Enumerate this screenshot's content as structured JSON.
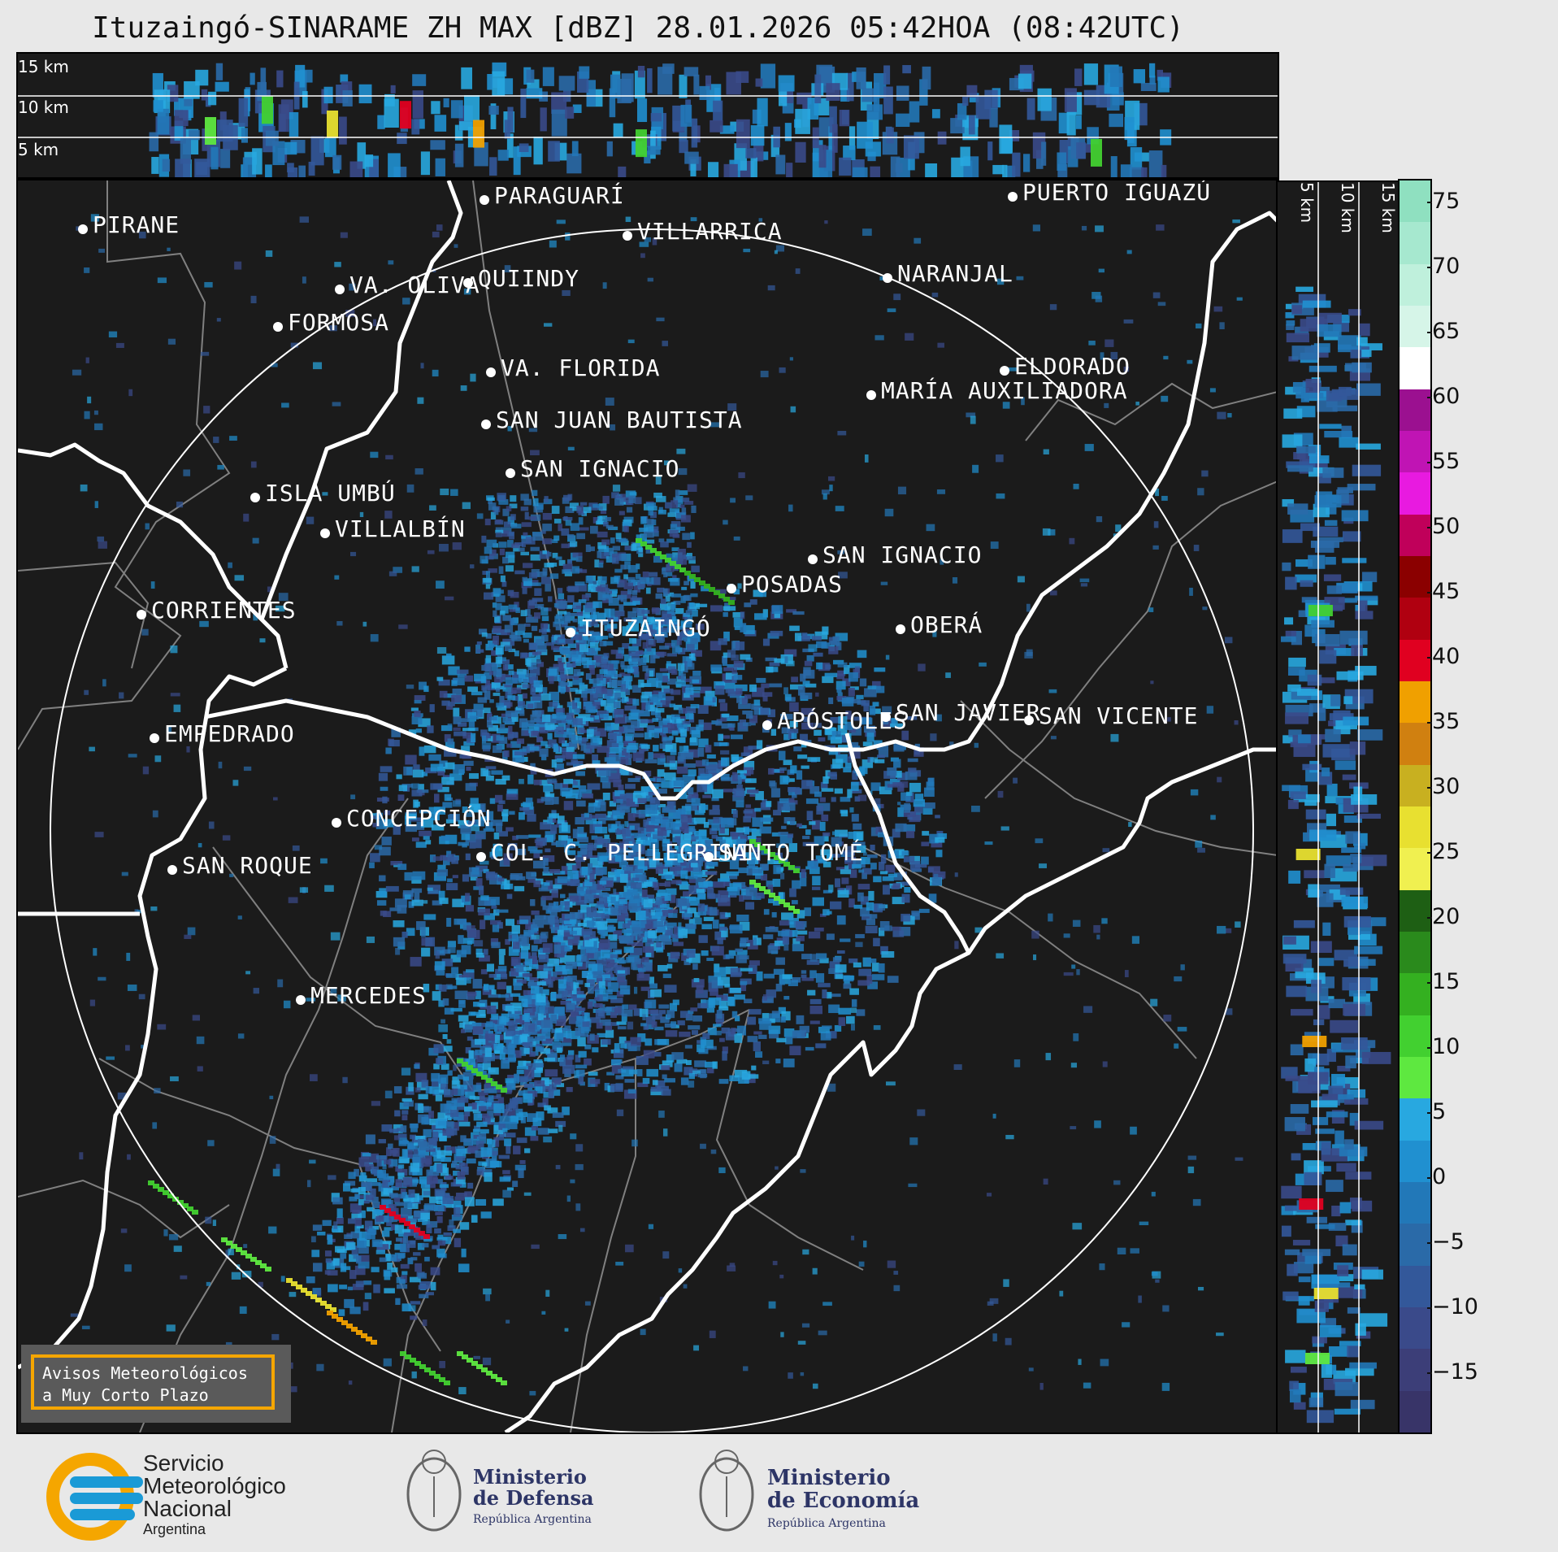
{
  "title": "Ituzaingó-SINARAME ZH MAX [dBZ] 28.01.2026 05:42HOA (08:42UTC)",
  "top_panel": {
    "alt_labels": [
      "15 km",
      "10 km",
      "5 km"
    ]
  },
  "right_panel": {
    "alt_labels": [
      "5 km",
      "10 km",
      "15 km"
    ]
  },
  "cities": [
    {
      "name": "PIRANE"
    },
    {
      "name": "PARAGUARÍ"
    },
    {
      "name": "VILLARRICA"
    },
    {
      "name": "QUIINDY"
    },
    {
      "name": "VA. OLIVA"
    },
    {
      "name": "FORMOSA"
    },
    {
      "name": "NARANJAL"
    },
    {
      "name": "VA. FLORIDA"
    },
    {
      "name": "MARÍA AUXILIADORA"
    },
    {
      "name": "ELDORADO"
    },
    {
      "name": "SAN JUAN BAUTISTA"
    },
    {
      "name": "SAN IGNACIO"
    },
    {
      "name": "ISLA UMBÚ"
    },
    {
      "name": "VILLALBÍN"
    },
    {
      "name": "SAN IGNACIO"
    },
    {
      "name": "POSADAS"
    },
    {
      "name": "CORRIENTES"
    },
    {
      "name": "ITUZAINGÓ"
    },
    {
      "name": "OBERÁ"
    },
    {
      "name": "EMPEDRADO"
    },
    {
      "name": "APÓSTOLES"
    },
    {
      "name": "SAN JAVIER"
    },
    {
      "name": "SAN VICENTE"
    },
    {
      "name": "CONCEPCIÓN"
    },
    {
      "name": "COL. C. PELLEGRINI"
    },
    {
      "name": "SANTO TOMÉ"
    },
    {
      "name": "SAN ROQUE"
    },
    {
      "name": "MERCEDES"
    },
    {
      "name": "PUERTO IGUAZÚ"
    }
  ],
  "colorbar": {
    "unit": "dBZ",
    "ticks": [
      "75",
      "70",
      "65",
      "60",
      "55",
      "50",
      "45",
      "40",
      "35",
      "30",
      "25",
      "20",
      "15",
      "10",
      "5",
      "0",
      "−5",
      "−10",
      "−15"
    ],
    "colors": [
      "#8fe0c0",
      "#a6e8cf",
      "#bff0dc",
      "#d6f5e8",
      "#ffffff",
      "#9b1090",
      "#c014b4",
      "#e81ae0",
      "#c0005a",
      "#8b0000",
      "#b00010",
      "#e00020",
      "#f0a000",
      "#d08010",
      "#c8b020",
      "#e8e030",
      "#f0f050",
      "#1e5f14",
      "#2a8a1c",
      "#34b020",
      "#42d030",
      "#5ee840",
      "#28a8e0",
      "#2090d0",
      "#2278b8",
      "#2a6aa8",
      "#33589a",
      "#3a4a8a",
      "#3c3e78",
      "#383468"
    ]
  },
  "warning_box": {
    "line1": "Avisos Meteorológicos",
    "line2": "a Muy Corto Plazo"
  },
  "logos": {
    "smn": {
      "line1": "Servicio",
      "line2": "Meteorológico",
      "line3": "Nacional",
      "line4": "Argentina",
      "accent": "#f5a600",
      "blue": "#1a9ad6"
    },
    "defensa": {
      "line1": "Ministerio",
      "line2": "de Defensa",
      "line3": "República Argentina"
    },
    "economia": {
      "line1": "Ministerio",
      "line2": "de Economía",
      "line3": "República Argentina"
    }
  },
  "colors": {
    "background_map": "#1b1b1b",
    "rivers": "#ffffff",
    "borders": "#808080",
    "page": "#e8e8e8"
  }
}
